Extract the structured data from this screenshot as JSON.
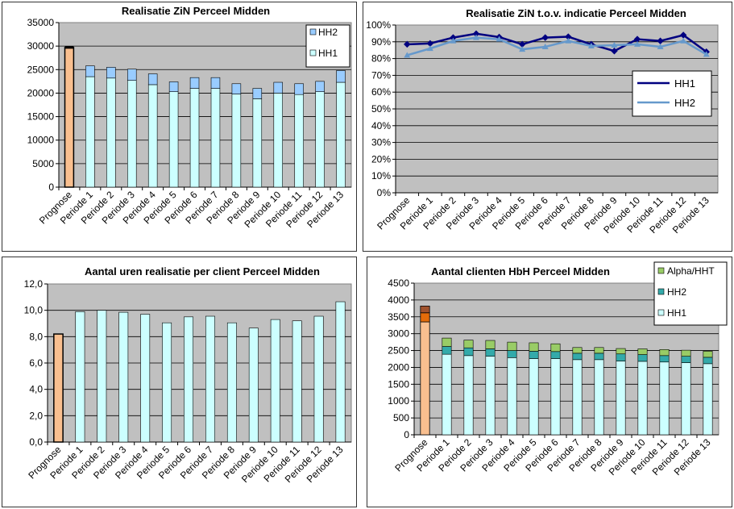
{
  "colors": {
    "plot_bg": "#c0c0c0",
    "prognose": "#f9bf8f",
    "prognose_outline": "#000000",
    "hh1": "#ccffff",
    "hh2": "#99ccff",
    "alpha": "#99cc66",
    "hh2_teal": "#33aaaa",
    "prognose_mid": "#e46c0a",
    "prognose_top": "#a0522d",
    "line_hh1": "#000080",
    "line_hh2": "#6699cc"
  },
  "chart_data": [
    {
      "type": "bar",
      "stacked": true,
      "title": "Realisatie ZiN  Perceel Midden",
      "categories": [
        "Prognose",
        "Periode 1",
        "Periode 2",
        "Periode 3",
        "Periode 4",
        "Periode 5",
        "Periode 6",
        "Periode 7",
        "Periode 8",
        "Periode 9",
        "Periode 10",
        "Periode 11",
        "Periode 12",
        "Periode 13"
      ],
      "prognose": 29700,
      "series": [
        {
          "name": "HH1",
          "values": [
            null,
            23500,
            23200,
            22700,
            21800,
            20300,
            21000,
            21000,
            19800,
            18800,
            20000,
            19700,
            20300,
            22300
          ]
        },
        {
          "name": "HH2",
          "values": [
            null,
            2300,
            2300,
            2400,
            2300,
            2100,
            2300,
            2300,
            2200,
            2200,
            2300,
            2300,
            2200,
            2500
          ]
        }
      ],
      "ylim": [
        0,
        35000
      ],
      "yticks": [
        "0",
        "5000",
        "10000",
        "15000",
        "20000",
        "25000",
        "30000",
        "35000"
      ],
      "grid": true,
      "legend": "top-right"
    },
    {
      "type": "line",
      "title": "Realisatie ZiN t.o.v. indicatie  Perceel Midden",
      "categories": [
        "Prognose",
        "Periode 1",
        "Periode 2",
        "Periode 3",
        "Periode 4",
        "Periode 5",
        "Periode 6",
        "Periode 7",
        "Periode 8",
        "Periode 9",
        "Periode 10",
        "Periode 11",
        "Periode 12",
        "Periode 13"
      ],
      "series": [
        {
          "name": "HH1",
          "values": [
            0.885,
            0.89,
            0.925,
            0.948,
            0.928,
            0.885,
            0.925,
            0.93,
            0.885,
            0.845,
            0.915,
            0.905,
            0.94,
            0.84
          ]
        },
        {
          "name": "HH2",
          "values": [
            0.82,
            0.86,
            0.905,
            0.925,
            0.915,
            0.855,
            0.87,
            0.905,
            0.875,
            0.88,
            0.885,
            0.87,
            0.905,
            0.825
          ]
        }
      ],
      "ylim": [
        0,
        1
      ],
      "yticks": [
        "0%",
        "10%",
        "20%",
        "30%",
        "40%",
        "50%",
        "60%",
        "70%",
        "80%",
        "90%",
        "100%"
      ],
      "grid": true,
      "legend": "right"
    },
    {
      "type": "bar",
      "title": "Aantal uren realisatie per client Perceel Midden",
      "categories": [
        "Prognose",
        "Periode 1",
        "Periode 2",
        "Periode 3",
        "Periode 4",
        "Periode 5",
        "Periode 6",
        "Periode 7",
        "Periode 8",
        "Periode 9",
        "Periode 10",
        "Periode 11",
        "Periode 12",
        "Periode 13"
      ],
      "values": [
        8.2,
        9.9,
        10.0,
        9.85,
        9.7,
        9.05,
        9.5,
        9.55,
        9.05,
        8.65,
        9.3,
        9.2,
        9.55,
        10.65
      ],
      "ylim": [
        0,
        12
      ],
      "yticks": [
        "0,0",
        "2,0",
        "4,0",
        "6,0",
        "8,0",
        "10,0",
        "12,0"
      ],
      "grid": true
    },
    {
      "type": "bar",
      "stacked": true,
      "title": "Aantal clienten HbH Perceel Midden",
      "categories": [
        "Prognose",
        "Periode 1",
        "Periode 2",
        "Periode 3",
        "Periode 4",
        "Periode 5",
        "Periode 6",
        "Periode 7",
        "Periode 8",
        "Periode 9",
        "Periode 10",
        "Periode 11",
        "Periode 12",
        "Periode 13"
      ],
      "prognose_stack": [
        3350,
        270,
        200
      ],
      "series": [
        {
          "name": "HH1",
          "values": [
            null,
            2390,
            2350,
            2330,
            2290,
            2260,
            2260,
            2230,
            2230,
            2190,
            2180,
            2160,
            2140,
            2110
          ]
        },
        {
          "name": "HH2",
          "values": [
            null,
            230,
            230,
            220,
            210,
            220,
            210,
            190,
            190,
            210,
            200,
            190,
            190,
            190
          ]
        },
        {
          "name": "Alpha/HHT",
          "values": [
            null,
            250,
            230,
            250,
            250,
            250,
            230,
            170,
            170,
            160,
            170,
            180,
            180,
            180
          ]
        }
      ],
      "ylim": [
        0,
        4500
      ],
      "yticks": [
        "0",
        "500",
        "1000",
        "1500",
        "2000",
        "2500",
        "3000",
        "3500",
        "4000",
        "4500"
      ],
      "grid": true,
      "legend": "top-right"
    }
  ]
}
